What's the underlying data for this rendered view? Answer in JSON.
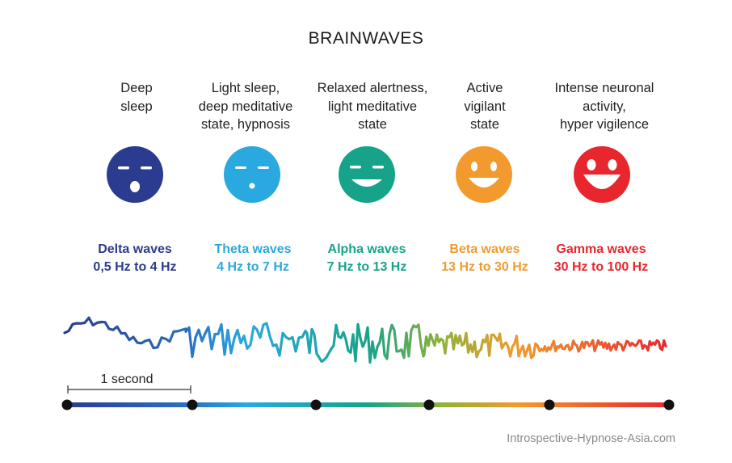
{
  "title": "BRAINWAVES",
  "states": [
    {
      "lines": [
        "Deep",
        "sleep"
      ],
      "wave": "Delta waves",
      "range": "0,5 Hz to 4 Hz",
      "color": "#2b3b8f",
      "mouth": "o"
    },
    {
      "lines": [
        "Light sleep,",
        "deep meditative",
        "state, hypnosis"
      ],
      "wave": "Theta waves",
      "range": "4 Hz to 7 Hz",
      "color": "#2aa8e0",
      "mouth": "o-small"
    },
    {
      "lines": [
        "Relaxed alertness,",
        "light meditative",
        "state"
      ],
      "wave": "Alpha waves",
      "range": "7 Hz to 13 Hz",
      "color": "#17a389",
      "mouth": "smile"
    },
    {
      "lines": [
        "Active",
        "vigilant",
        "state"
      ],
      "wave": "Beta waves",
      "range": "13 Hz to 30 Hz",
      "color": "#f29a2e",
      "mouth": "grin"
    },
    {
      "lines": [
        "Intense neuronal",
        "activity,",
        "hyper vigilence"
      ],
      "wave": "Gamma waves",
      "range": "30 Hz to 100 Hz",
      "color": "#e8262d",
      "mouth": "big-grin"
    }
  ],
  "scale_label": "1 second",
  "credit": "Introspective-Hypnose-Asia.com",
  "gradient_colors": [
    "#2b3b8f",
    "#2aa8e0",
    "#17a389",
    "#f29a2e",
    "#e8262d"
  ]
}
